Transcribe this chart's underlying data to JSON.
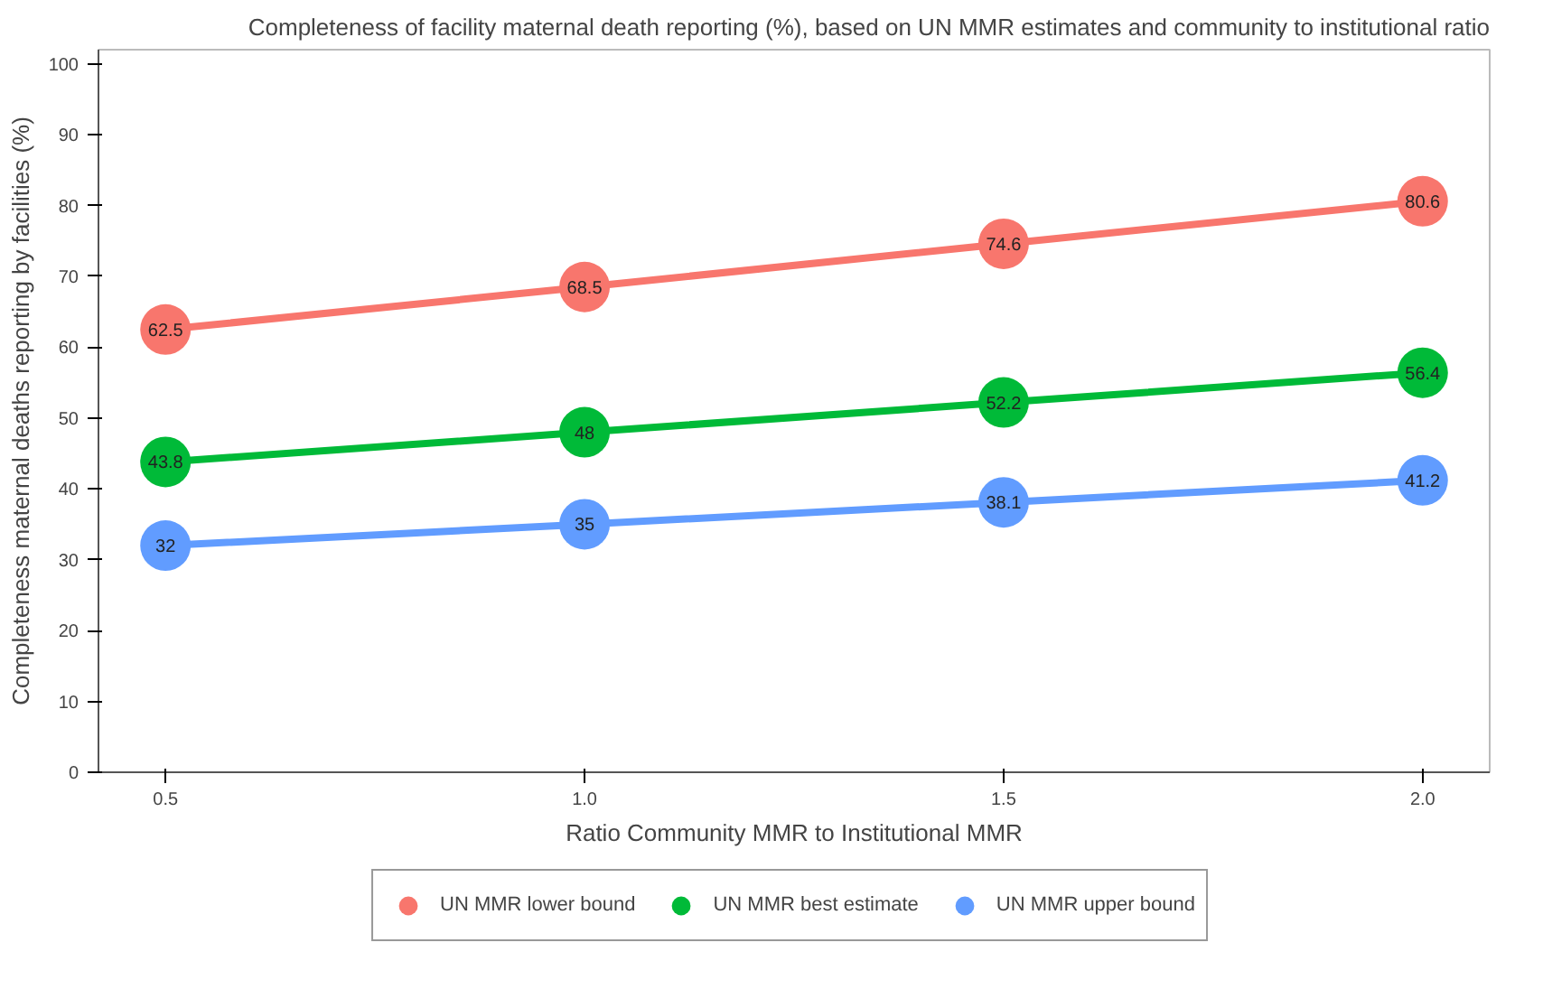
{
  "chart_data": {
    "type": "line",
    "title": "Completeness of facility maternal death reporting (%), based on UN MMR estimates and community to institutional ratio",
    "xlabel": "Ratio Community MMR to Institutional MMR",
    "ylabel": "Completeness maternal deaths reporting by facilities (%)",
    "x": [
      0.5,
      1.0,
      1.5,
      2.0
    ],
    "series": [
      {
        "name": "UN MMR lower bound",
        "color": "#f8766d",
        "values": [
          62.5,
          68.5,
          74.6,
          80.6
        ]
      },
      {
        "name": "UN MMR best estimate",
        "color": "#00ba38",
        "values": [
          43.8,
          48,
          52.2,
          56.4
        ]
      },
      {
        "name": "UN MMR upper bound",
        "color": "#619cff",
        "values": [
          32,
          35,
          38.1,
          41.2
        ]
      }
    ],
    "xlim": [
      0.42,
      2.08
    ],
    "xticks": [
      {
        "value": 0.5,
        "label": "0.5"
      },
      {
        "value": 1.0,
        "label": "1.0"
      },
      {
        "value": 1.5,
        "label": "1.5"
      },
      {
        "value": 2.0,
        "label": "2.0"
      }
    ],
    "ylim": [
      0,
      102
    ],
    "yticks": [
      0,
      10,
      20,
      30,
      40,
      50,
      60,
      70,
      80,
      90,
      100
    ],
    "grid": false,
    "legend": "bottom",
    "marker": "circle",
    "line_style": "solid",
    "data_labels": true
  }
}
